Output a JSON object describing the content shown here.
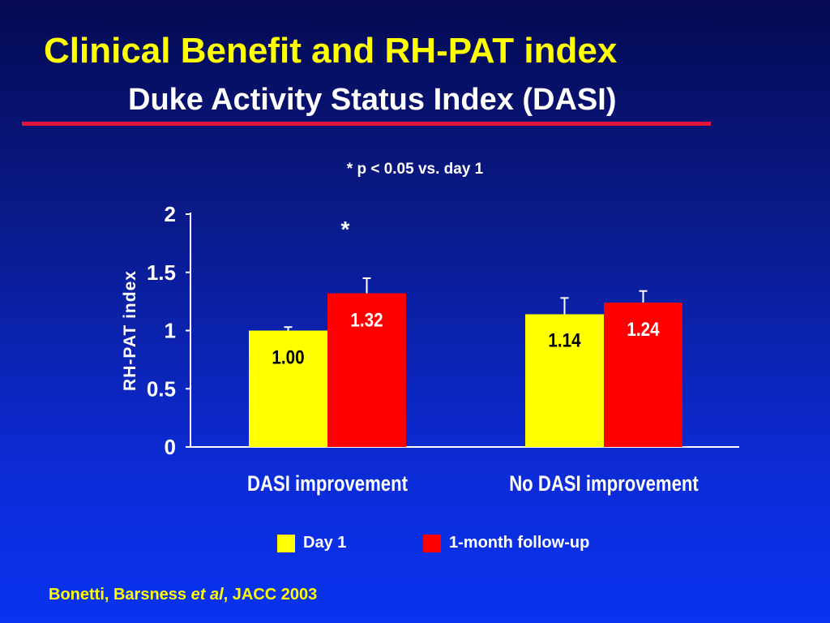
{
  "slide": {
    "title": "Clinical Benefit and RH-PAT index",
    "subtitle": "Duke Activity Status Index (DASI)",
    "note": "* p < 0.05 vs. day 1",
    "citation_authors": "Bonetti, Barsness ",
    "citation_etal": "et al",
    "citation_journal": ",  JACC 2003"
  },
  "colors": {
    "title": "#ffff00",
    "rule": "#e2143b",
    "day1": "#ffff00",
    "followup": "#ff0000"
  },
  "chart_data": {
    "type": "bar",
    "ylabel": "RH-PAT index",
    "ylim": [
      0,
      2
    ],
    "yticks": [
      "0",
      "0.5",
      "1",
      "1.5",
      "2"
    ],
    "categories": [
      "DASI improvement",
      "No DASI improvement"
    ],
    "series": [
      {
        "name": "Day 1",
        "color": "#ffff00",
        "values": [
          1.0,
          1.14
        ],
        "labels": [
          "1.00",
          "1.14"
        ],
        "errors": [
          0.03,
          0.14
        ]
      },
      {
        "name": "1-month follow-up",
        "color": "#ff0000",
        "values": [
          1.32,
          1.24
        ],
        "labels": [
          "1.32",
          "1.24"
        ],
        "errors": [
          0.13,
          0.1
        ]
      }
    ],
    "annotations": [
      {
        "text": "*",
        "category": 0,
        "series": 1
      }
    ],
    "legend": "bottom"
  }
}
